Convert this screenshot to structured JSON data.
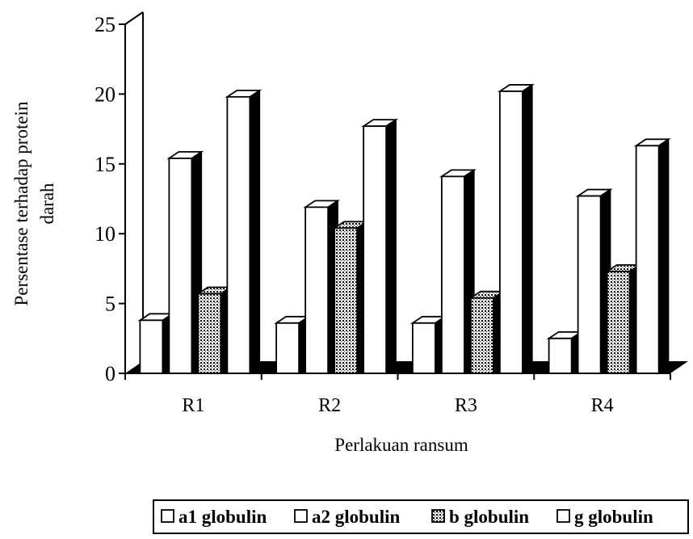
{
  "chart_data": {
    "type": "bar",
    "categories": [
      "R1",
      "R2",
      "R3",
      "R4"
    ],
    "series": [
      {
        "name": "a1 globulin",
        "values": [
          3.8,
          3.6,
          3.6,
          2.5
        ],
        "pattern": "white"
      },
      {
        "name": "a2 globulin",
        "values": [
          15.4,
          11.9,
          14.1,
          12.7
        ],
        "pattern": "white"
      },
      {
        "name": "b globulin",
        "values": [
          5.7,
          10.4,
          5.4,
          7.3
        ],
        "pattern": "dotted"
      },
      {
        "name": "g globulin",
        "values": [
          19.8,
          17.7,
          20.2,
          16.3
        ],
        "pattern": "white"
      }
    ],
    "ylim": [
      0,
      25
    ],
    "yticks": [
      0,
      5,
      10,
      15,
      20,
      25
    ],
    "ylabel_line1": "Persentase terhadap protein",
    "ylabel_line2": "darah",
    "xlabel": "Perlakuan ransum",
    "legend_position": "bottom",
    "grid": false,
    "style": "3d-bar"
  }
}
